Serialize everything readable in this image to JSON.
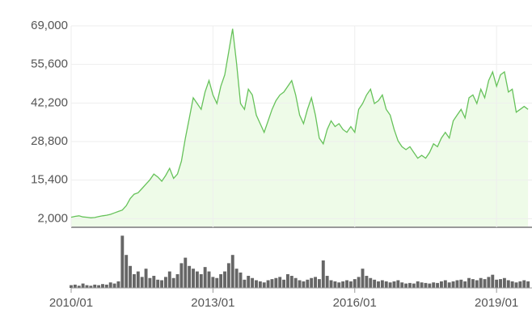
{
  "chart_data": [
    {
      "type": "area",
      "color": "#66c25a",
      "fill": "#eefbe8",
      "grid": true,
      "xlim": [
        "2010/01",
        "2019/10"
      ],
      "xticks": [
        "2010/01",
        "2013/01",
        "2016/01",
        "2019/01"
      ],
      "ylim": [
        -1000,
        69000
      ],
      "yticks": [
        {
          "value": 2000,
          "label": "2,000"
        },
        {
          "value": 15400,
          "label": "15,400"
        },
        {
          "value": 28800,
          "label": "28,800"
        },
        {
          "value": 42200,
          "label": "42,200"
        },
        {
          "value": 55600,
          "label": "55,600"
        },
        {
          "value": 69000,
          "label": "69,000"
        }
      ],
      "x": [
        "2010/01",
        "2010/02",
        "2010/03",
        "2010/04",
        "2010/05",
        "2010/06",
        "2010/07",
        "2010/08",
        "2010/09",
        "2010/10",
        "2010/11",
        "2010/12",
        "2011/01",
        "2011/02",
        "2011/03",
        "2011/04",
        "2011/05",
        "2011/06",
        "2011/07",
        "2011/08",
        "2011/09",
        "2011/10",
        "2011/11",
        "2011/12",
        "2012/01",
        "2012/02",
        "2012/03",
        "2012/04",
        "2012/05",
        "2012/06",
        "2012/07",
        "2012/08",
        "2012/09",
        "2012/10",
        "2012/11",
        "2012/12",
        "2013/01",
        "2013/02",
        "2013/03",
        "2013/04",
        "2013/05",
        "2013/06",
        "2013/07",
        "2013/08",
        "2013/09",
        "2013/10",
        "2013/11",
        "2013/12",
        "2014/01",
        "2014/02",
        "2014/03",
        "2014/04",
        "2014/05",
        "2014/06",
        "2014/07",
        "2014/08",
        "2014/09",
        "2014/10",
        "2014/11",
        "2014/12",
        "2015/01",
        "2015/02",
        "2015/03",
        "2015/04",
        "2015/05",
        "2015/06",
        "2015/07",
        "2015/08",
        "2015/09",
        "2015/10",
        "2015/11",
        "2015/12",
        "2016/01",
        "2016/02",
        "2016/03",
        "2016/04",
        "2016/05",
        "2016/06",
        "2016/07",
        "2016/08",
        "2016/09",
        "2016/10",
        "2016/11",
        "2016/12",
        "2017/01",
        "2017/02",
        "2017/03",
        "2017/04",
        "2017/05",
        "2017/06",
        "2017/07",
        "2017/08",
        "2017/09",
        "2017/10",
        "2017/11",
        "2017/12",
        "2018/01",
        "2018/02",
        "2018/03",
        "2018/04",
        "2018/05",
        "2018/06",
        "2018/07",
        "2018/08",
        "2018/09",
        "2018/10",
        "2018/11",
        "2018/12",
        "2019/01",
        "2019/02",
        "2019/03",
        "2019/04",
        "2019/05",
        "2019/06",
        "2019/07",
        "2019/08",
        "2019/09"
      ],
      "values": [
        2500,
        2800,
        3000,
        2600,
        2500,
        2300,
        2400,
        2700,
        3000,
        3200,
        3500,
        4000,
        4500,
        5000,
        6500,
        9000,
        10500,
        11000,
        12500,
        14000,
        15500,
        17500,
        16500,
        15000,
        17000,
        19500,
        16000,
        17500,
        22000,
        30000,
        37000,
        44000,
        42000,
        40000,
        46000,
        50000,
        45000,
        42000,
        48000,
        52000,
        60000,
        68000,
        56000,
        42000,
        40000,
        47000,
        45000,
        38000,
        35000,
        32000,
        36000,
        40000,
        43000,
        45000,
        46000,
        48000,
        50000,
        45000,
        38000,
        35000,
        40000,
        44000,
        38000,
        30000,
        28000,
        33000,
        36000,
        34000,
        35000,
        33000,
        32000,
        34000,
        32000,
        40000,
        42000,
        45000,
        47000,
        42000,
        43000,
        45000,
        40000,
        38000,
        33000,
        29000,
        27000,
        26000,
        27000,
        25000,
        23000,
        24000,
        23000,
        25000,
        28000,
        27000,
        30000,
        32000,
        30000,
        36000,
        38000,
        40000,
        37000,
        44000,
        45000,
        42000,
        47000,
        44000,
        50000,
        53000,
        48000,
        52000,
        53000,
        46000,
        47000,
        39000,
        40000,
        41000,
        40000
      ]
    },
    {
      "type": "bar",
      "color": "#666666",
      "ylim": [
        0,
        100
      ],
      "values": [
        5,
        6,
        4,
        8,
        5,
        4,
        6,
        5,
        7,
        6,
        10,
        8,
        12,
        95,
        60,
        40,
        25,
        30,
        20,
        35,
        18,
        22,
        15,
        14,
        20,
        30,
        18,
        25,
        45,
        55,
        40,
        35,
        30,
        25,
        38,
        30,
        20,
        18,
        25,
        30,
        45,
        60,
        35,
        28,
        15,
        22,
        18,
        14,
        12,
        10,
        14,
        16,
        18,
        20,
        15,
        25,
        22,
        18,
        14,
        12,
        15,
        18,
        20,
        16,
        50,
        22,
        14,
        12,
        10,
        12,
        14,
        12,
        16,
        20,
        35,
        22,
        18,
        15,
        12,
        14,
        12,
        10,
        12,
        14,
        10,
        8,
        9,
        8,
        12,
        10,
        9,
        8,
        10,
        9,
        12,
        14,
        10,
        12,
        14,
        15,
        12,
        18,
        16,
        14,
        18,
        16,
        20,
        24,
        15,
        16,
        18,
        14,
        12,
        10,
        12,
        14,
        12
      ]
    }
  ]
}
